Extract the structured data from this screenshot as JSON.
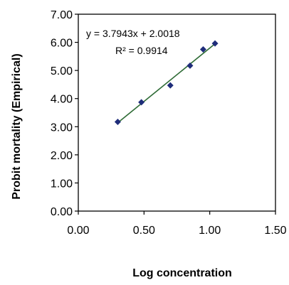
{
  "chart_data": {
    "type": "scatter",
    "title": "",
    "xlabel": "Log concentration",
    "ylabel": "Probit  mortality  (Empirical)",
    "xlim": [
      0,
      1.5
    ],
    "ylim": [
      0,
      7
    ],
    "x_ticks": [
      "0.00",
      "0.50",
      "1.00",
      "1.50"
    ],
    "y_ticks": [
      "0.00",
      "1.00",
      "2.00",
      "3.00",
      "4.00",
      "5.00",
      "6.00",
      "7.00"
    ],
    "grid": false,
    "legend": "none",
    "series": [
      {
        "x": [
          0.3,
          0.48,
          0.7,
          0.85,
          0.95,
          1.04
        ],
        "y": [
          3.17,
          3.87,
          4.47,
          5.17,
          5.75,
          5.96
        ],
        "marker": "diamond",
        "color": "#1f2d7a"
      }
    ],
    "trendline": {
      "type": "linear",
      "slope": 3.7943,
      "intercept": 2.0018,
      "x_range": [
        0.3,
        1.04
      ],
      "color": "#2e6b35",
      "equation_label": "y = 3.7943x + 2.0018",
      "r2_label": "R² = 0.9914"
    }
  }
}
